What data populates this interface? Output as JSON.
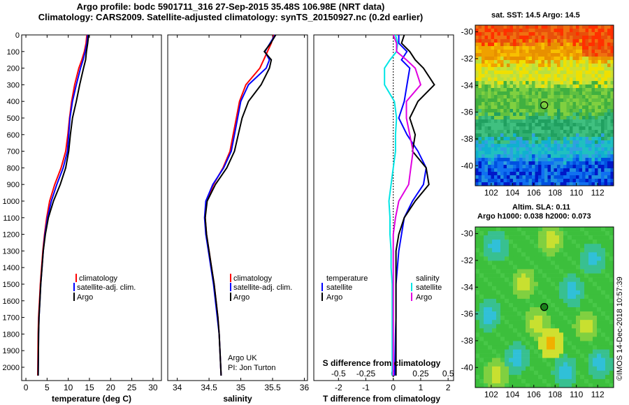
{
  "header": {
    "line1": "Argo profile: bodc 5901711_316 27-Sep-2015 35.48S 106.98E (NRT data)",
    "line2": "Climatology: CARS2009. Satellite-adjusted climatology: synTS_20150927.nc (0.2d earlier)"
  },
  "map_titles": {
    "sst": "sat. SST: 14.5 Argo: 14.5",
    "sla_line1": "Altim. SLA: 0.11",
    "sla_line2": "Argo h1000: 0.038 h2000: 0.073"
  },
  "watermark": "©IMOS 14-Dec-2018 10:57:39",
  "colors": {
    "climatology": "#ff0000",
    "satellite": "#0000ff",
    "argo": "#000000",
    "sat_salinity": "#00e5e5",
    "argo_salinity": "#e000e0"
  },
  "chart_data": [
    {
      "type": "line",
      "panel": "temperature",
      "xlabel": "temperature (deg C)",
      "ylabel": "",
      "xlim": [
        -1,
        32
      ],
      "ylim": [
        2080,
        0
      ],
      "xticks": [
        "0",
        "5",
        "10",
        "15",
        "20",
        "25",
        "30"
      ],
      "yticks": [
        "0",
        "100",
        "200",
        "300",
        "400",
        "500",
        "600",
        "700",
        "800",
        "900",
        "1000",
        "1100",
        "1200",
        "1300",
        "1400",
        "1500",
        "1600",
        "1700",
        "1800",
        "1900",
        "2000"
      ],
      "legend": [
        "climatology",
        "satellite-adj. clim.",
        "Argo"
      ],
      "legend_position": "bottom-right",
      "series": [
        {
          "name": "climatology",
          "color": "#ff0000",
          "x": [
            14.4,
            14.2,
            13.8,
            13.2,
            12.5,
            11.5,
            10.8,
            10.3,
            9.9,
            9.4,
            8.3,
            6.8,
            5.6,
            4.9,
            4.4,
            4.0,
            3.7,
            3.4,
            3.2,
            3.0,
            2.9,
            2.8
          ],
          "y": [
            0,
            50,
            100,
            150,
            200,
            300,
            400,
            500,
            600,
            700,
            800,
            900,
            1000,
            1100,
            1200,
            1300,
            1400,
            1500,
            1600,
            1700,
            1800,
            2050
          ]
        },
        {
          "name": "satellite-adj. clim.",
          "color": "#0000ff",
          "x": [
            14.6,
            14.4,
            14.0,
            13.5,
            12.9,
            11.9,
            11.0,
            10.4,
            10.1,
            9.8,
            8.8,
            7.3,
            6.0,
            5.1,
            4.5,
            4.1,
            3.8,
            3.5,
            3.3,
            3.1,
            3.0,
            2.9
          ],
          "y": [
            0,
            50,
            100,
            150,
            200,
            300,
            400,
            500,
            600,
            700,
            800,
            900,
            1000,
            1100,
            1200,
            1300,
            1400,
            1500,
            1600,
            1700,
            1800,
            2050
          ]
        },
        {
          "name": "Argo",
          "color": "#000000",
          "x": [
            14.8,
            14.6,
            14.3,
            14.1,
            13.6,
            12.7,
            11.9,
            11.0,
            10.5,
            10.1,
            9.4,
            8.1,
            6.5,
            5.3,
            4.6,
            4.1,
            3.8,
            3.5,
            3.3,
            3.1,
            3.0,
            2.9
          ],
          "y": [
            0,
            50,
            100,
            150,
            200,
            300,
            400,
            500,
            600,
            700,
            800,
            900,
            1000,
            1100,
            1200,
            1300,
            1400,
            1500,
            1600,
            1700,
            1800,
            2050
          ]
        }
      ]
    },
    {
      "type": "line",
      "panel": "salinity",
      "xlabel": "salinity",
      "xlim": [
        33.85,
        36.05
      ],
      "ylim": [
        2080,
        0
      ],
      "xticks": [
        "34",
        "34.5",
        "35",
        "35.5",
        "36"
      ],
      "legend": [
        "climatology",
        "satellite-adj. clim.",
        "Argo"
      ],
      "legend_position": "bottom-right",
      "annotation": [
        "Argo UK",
        "PI: Jon Turton"
      ],
      "series": [
        {
          "name": "climatology",
          "color": "#ff0000",
          "x": [
            35.52,
            35.48,
            35.42,
            35.36,
            35.3,
            35.08,
            34.98,
            34.93,
            34.88,
            34.83,
            34.72,
            34.57,
            34.46,
            34.44,
            34.46,
            34.5,
            34.54,
            34.58,
            34.61,
            34.64,
            34.66,
            34.69
          ],
          "y": [
            0,
            50,
            100,
            150,
            200,
            300,
            400,
            500,
            600,
            700,
            800,
            900,
            1000,
            1100,
            1200,
            1300,
            1400,
            1500,
            1600,
            1700,
            1800,
            2050
          ]
        },
        {
          "name": "satellite-adj. clim.",
          "color": "#0000ff",
          "x": [
            35.54,
            35.46,
            35.38,
            35.45,
            35.4,
            35.12,
            35.0,
            34.95,
            34.9,
            34.85,
            34.73,
            34.56,
            34.45,
            34.43,
            34.45,
            34.49,
            34.53,
            34.57,
            34.6,
            34.63,
            34.66,
            34.69
          ],
          "y": [
            0,
            50,
            100,
            150,
            200,
            300,
            400,
            500,
            600,
            700,
            800,
            900,
            1000,
            1100,
            1200,
            1300,
            1400,
            1500,
            1600,
            1700,
            1800,
            2050
          ]
        },
        {
          "name": "Argo",
          "color": "#000000",
          "x": [
            35.55,
            35.47,
            35.37,
            35.48,
            35.45,
            35.32,
            35.12,
            35.02,
            34.96,
            34.9,
            34.78,
            34.6,
            34.47,
            34.44,
            34.46,
            34.5,
            34.54,
            34.58,
            34.61,
            34.64,
            34.66,
            34.69
          ],
          "y": [
            0,
            50,
            100,
            150,
            200,
            300,
            400,
            500,
            600,
            700,
            800,
            900,
            1000,
            1100,
            1200,
            1300,
            1400,
            1500,
            1600,
            1700,
            1800,
            2050
          ]
        }
      ]
    },
    {
      "type": "line",
      "panel": "difference",
      "xlabel": "T difference from climatology",
      "xlabel_top": "S difference from climatology",
      "xlim": [
        -2.9,
        2.2
      ],
      "ylim": [
        2080,
        0
      ],
      "xticks": [
        "-2",
        "-1",
        "0",
        "1",
        "2"
      ],
      "xticks_salinity": [
        "-0.5",
        "-0.25",
        "0",
        "0.25",
        "0.5"
      ],
      "legend_left_title": "temperature",
      "legend_right_title": "salinity",
      "legend_left": [
        "satellite",
        "Argo"
      ],
      "legend_right": [
        "satellite",
        "Argo"
      ],
      "legend_position": "bottom",
      "series": [
        {
          "name": "satellite",
          "quantity": "temperature",
          "color": "#0000ff",
          "x": [
            0.2,
            0.2,
            0.5,
            0.3,
            0.6,
            0.5,
            0.4,
            0.2,
            0.5,
            0.9,
            1.2,
            1.1,
            0.7,
            0.4,
            0.3,
            0.2,
            0.15,
            0.1,
            0.1,
            0.1,
            0.08,
            0.05
          ],
          "y": [
            0,
            50,
            100,
            150,
            200,
            300,
            400,
            500,
            600,
            700,
            800,
            900,
            1000,
            1100,
            1200,
            1300,
            1400,
            1500,
            1600,
            1700,
            1800,
            2050
          ]
        },
        {
          "name": "Argo",
          "quantity": "temperature",
          "color": "#000000",
          "x": [
            0.4,
            0.3,
            0.6,
            0.8,
            1.1,
            1.5,
            0.9,
            0.6,
            0.8,
            0.7,
            1.2,
            1.3,
            0.8,
            0.4,
            0.2,
            0.1,
            0.1,
            0.1,
            0.1,
            0.1,
            0.1,
            0.1
          ],
          "y": [
            0,
            50,
            100,
            150,
            200,
            300,
            400,
            500,
            600,
            700,
            800,
            900,
            1000,
            1100,
            1200,
            1300,
            1400,
            1500,
            1600,
            1700,
            1800,
            2050
          ]
        },
        {
          "name": "satellite",
          "quantity": "salinity",
          "color": "#00e5e5",
          "x": [
            0.02,
            0.04,
            0.03,
            -0.03,
            -0.08,
            -0.08,
            0.01,
            0.03,
            0.02,
            0.02,
            0.0,
            -0.02,
            -0.04,
            -0.03,
            -0.03,
            -0.02,
            -0.02,
            -0.01,
            -0.01,
            -0.01,
            -0.01,
            -0.01
          ],
          "y": [
            0,
            50,
            100,
            150,
            200,
            300,
            400,
            500,
            600,
            700,
            800,
            900,
            1000,
            1100,
            1200,
            1300,
            1400,
            1500,
            1600,
            1700,
            1800,
            2050
          ]
        },
        {
          "name": "Argo",
          "quantity": "salinity",
          "color": "#e000e0",
          "x": [
            0.0,
            0.03,
            0.03,
            0.12,
            0.2,
            0.25,
            0.12,
            0.12,
            0.15,
            0.18,
            0.16,
            0.14,
            0.05,
            0.02,
            0.0,
            0.0,
            0.0,
            0.0,
            0.0,
            0.0,
            0.0,
            0.0
          ],
          "y": [
            0,
            50,
            100,
            150,
            200,
            300,
            400,
            500,
            600,
            700,
            800,
            900,
            1000,
            1100,
            1200,
            1300,
            1400,
            1500,
            1600,
            1700,
            1800,
            2050
          ]
        }
      ]
    },
    {
      "type": "heatmap",
      "panel": "sst-map",
      "title": "sat. SST: 14.5 Argo: 14.5",
      "xlim": [
        100.5,
        113.5
      ],
      "ylim": [
        -41.5,
        -29.5
      ],
      "xticks": [
        "102",
        "104",
        "106",
        "108",
        "110",
        "112"
      ],
      "yticks": [
        "-30",
        "-32",
        "-34",
        "-36",
        "-38",
        "-40"
      ],
      "marker": {
        "lon": 106.98,
        "lat": -35.48
      },
      "rows": [
        "RRRRRRRRRRRRRRRRRRRRRRRRRRRRRRRRRRRRRRRRRRRRRRRRRRRRRRRRRRrrrrrrrrrrrrRRRRRRRRRRRRRRRR",
        "OOOOOOOOOOOOOOOOOOOOOOOOOOOOOOOOOOOOOOOOOOOOOOOOOOOOOOOOOOOOOOOOOOOOOORRRRRRRRRRRRRRRRR",
        "YYYYYYYYYYYYYYYYYYYYYYOOOOOOOOOOOOOOOOOOOOOOOOOOOOOOOOOOOOOOOOOOOOOOOOOOOOOOOOOOOOOOOOOO",
        "YYYYYYYYYYYYYYYYYYYYYYYYYYYYYYYYYYYYYYYYYYYYYYYYYYYYYYYYYYYYYYYYYYYYYYYYYYYYYYYYYYYYYYYY",
        "GGGGGGGGGGGGGGGGGGGGGGGGGGGGGGGGGGGGGGGGGGGGGGGGGGGGGGGGGGGGGGGGGGGGGGGGGGGGGGGGGGGGGGGG",
        "CCCCCCCCCCCCCCCCCCCCCCCCCCCCCCCCCCCCCCCCCCCCCCCCCCCCCCCCCCCCCCCCCCCCCCCCCCCCCCCCCCCCCCCCC",
        "BBBBBBBBBBBBBBBBBBBBBBBBBBBBBBBBBBBBBBBBBBBBBBBBBBBBBBBBBBBBBBBBBBBBBBBBBBBBBBBBBBBBBBBBB"
      ]
    },
    {
      "type": "heatmap",
      "panel": "sla-map",
      "title": "Altim. SLA: 0.11",
      "subtitle": "Argo h1000: 0.038 h2000: 0.073",
      "xlim": [
        100.5,
        113.5
      ],
      "ylim": [
        -41.5,
        -29.5
      ],
      "xticks": [
        "102",
        "104",
        "106",
        "108",
        "110",
        "112"
      ],
      "yticks": [
        "-30",
        "-32",
        "-34",
        "-36",
        "-38",
        "-40"
      ],
      "marker": {
        "lon": 106.98,
        "lat": -35.48
      },
      "color_scale": "dominant green with cyan lows and yellow highs"
    }
  ]
}
